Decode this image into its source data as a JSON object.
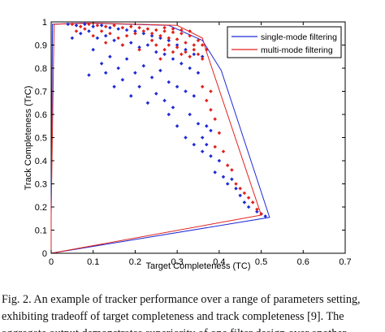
{
  "caption": {
    "lines": [
      "Fig. 2.   An example of tracker performance over a range of parameters setting,",
      "exhibiting tradeoff of target completeness and track completeness [9]. The",
      "aggregate output demonstrates superiority of one filter design over another."
    ]
  },
  "chart_data": {
    "type": "scatter",
    "xlabel": "Target Completeness (TC)",
    "ylabel": "Track Completeness (TrC)",
    "xlim": [
      0,
      0.7
    ],
    "ylim": [
      0,
      1
    ],
    "xticks": [
      "0",
      "0.1",
      "0.2",
      "0.3",
      "0.4",
      "0.5",
      "0.6",
      "0.7"
    ],
    "yticks": [
      "0",
      "0.1",
      "0.2",
      "0.3",
      "0.4",
      "0.5",
      "0.6",
      "0.7",
      "0.8",
      "0.9",
      "1"
    ],
    "grid": false,
    "legend_position": "top-right",
    "series": [
      {
        "name": "single-mode filtering",
        "color": "#1f2bd6",
        "hull": [
          [
            0,
            0
          ],
          [
            0.0,
            0.17
          ],
          [
            0.003,
            0.99
          ],
          [
            0.08,
            0.995
          ],
          [
            0.28,
            0.985
          ],
          [
            0.36,
            0.92
          ],
          [
            0.405,
            0.79
          ],
          [
            0.52,
            0.155
          ],
          [
            0,
            0
          ]
        ],
        "points": [
          [
            0.04,
            0.99
          ],
          [
            0.06,
            0.985
          ],
          [
            0.08,
            0.99
          ],
          [
            0.1,
            0.98
          ],
          [
            0.12,
            0.985
          ],
          [
            0.14,
            0.975
          ],
          [
            0.16,
            0.97
          ],
          [
            0.18,
            0.965
          ],
          [
            0.2,
            0.96
          ],
          [
            0.22,
            0.95
          ],
          [
            0.24,
            0.94
          ],
          [
            0.26,
            0.93
          ],
          [
            0.28,
            0.92
          ],
          [
            0.3,
            0.9
          ],
          [
            0.32,
            0.88
          ],
          [
            0.34,
            0.86
          ],
          [
            0.36,
            0.85
          ],
          [
            0.05,
            0.93
          ],
          [
            0.07,
            0.95
          ],
          [
            0.09,
            0.96
          ],
          [
            0.11,
            0.93
          ],
          [
            0.13,
            0.94
          ],
          [
            0.15,
            0.92
          ],
          [
            0.17,
            0.9
          ],
          [
            0.19,
            0.91
          ],
          [
            0.21,
            0.89
          ],
          [
            0.23,
            0.9
          ],
          [
            0.25,
            0.87
          ],
          [
            0.27,
            0.86
          ],
          [
            0.29,
            0.84
          ],
          [
            0.31,
            0.82
          ],
          [
            0.33,
            0.8
          ],
          [
            0.35,
            0.78
          ],
          [
            0.12,
            0.82
          ],
          [
            0.14,
            0.85
          ],
          [
            0.16,
            0.8
          ],
          [
            0.18,
            0.84
          ],
          [
            0.2,
            0.78
          ],
          [
            0.22,
            0.81
          ],
          [
            0.24,
            0.76
          ],
          [
            0.26,
            0.79
          ],
          [
            0.28,
            0.74
          ],
          [
            0.3,
            0.72
          ],
          [
            0.32,
            0.7
          ],
          [
            0.34,
            0.68
          ],
          [
            0.1,
            0.88
          ],
          [
            0.13,
            0.78
          ],
          [
            0.17,
            0.75
          ],
          [
            0.21,
            0.72
          ],
          [
            0.25,
            0.69
          ],
          [
            0.27,
            0.66
          ],
          [
            0.29,
            0.63
          ],
          [
            0.33,
            0.6
          ],
          [
            0.35,
            0.56
          ],
          [
            0.37,
            0.55
          ],
          [
            0.38,
            0.53
          ],
          [
            0.3,
            0.55
          ],
          [
            0.32,
            0.5
          ],
          [
            0.34,
            0.47
          ],
          [
            0.36,
            0.44
          ],
          [
            0.38,
            0.42
          ],
          [
            0.4,
            0.4
          ],
          [
            0.39,
            0.35
          ],
          [
            0.41,
            0.33
          ],
          [
            0.42,
            0.3
          ],
          [
            0.44,
            0.28
          ],
          [
            0.45,
            0.25
          ],
          [
            0.46,
            0.22
          ],
          [
            0.47,
            0.2
          ],
          [
            0.49,
            0.18
          ],
          [
            0.5,
            0.17
          ],
          [
            0.51,
            0.16
          ],
          [
            0.36,
            0.5
          ],
          [
            0.28,
            0.6
          ],
          [
            0.23,
            0.65
          ],
          [
            0.15,
            0.72
          ],
          [
            0.09,
            0.77
          ],
          [
            0.19,
            0.68
          ],
          [
            0.37,
            0.47
          ],
          [
            0.43,
            0.32
          ]
        ]
      },
      {
        "name": "multi-mode filtering",
        "color": "#e0221e",
        "hull": [
          [
            0,
            0
          ],
          [
            0.5,
            0.165
          ],
          [
            0.37,
            0.87
          ],
          [
            0.36,
            0.93
          ],
          [
            0.3,
            0.985
          ],
          [
            0.1,
            0.995
          ],
          [
            0.007,
            0.99
          ],
          [
            0.0,
            0.17
          ],
          [
            0,
            0
          ]
        ],
        "points": [
          [
            0.05,
            0.99
          ],
          [
            0.07,
            0.98
          ],
          [
            0.09,
            0.99
          ],
          [
            0.11,
            0.985
          ],
          [
            0.13,
            0.98
          ],
          [
            0.15,
            0.985
          ],
          [
            0.17,
            0.975
          ],
          [
            0.19,
            0.98
          ],
          [
            0.21,
            0.975
          ],
          [
            0.23,
            0.97
          ],
          [
            0.25,
            0.965
          ],
          [
            0.27,
            0.96
          ],
          [
            0.29,
            0.955
          ],
          [
            0.31,
            0.95
          ],
          [
            0.33,
            0.94
          ],
          [
            0.35,
            0.92
          ],
          [
            0.36,
            0.9
          ],
          [
            0.37,
            0.88
          ],
          [
            0.24,
            0.95
          ],
          [
            0.26,
            0.94
          ],
          [
            0.28,
            0.93
          ],
          [
            0.3,
            0.925
          ],
          [
            0.32,
            0.91
          ],
          [
            0.34,
            0.9
          ],
          [
            0.29,
            0.97
          ],
          [
            0.31,
            0.965
          ],
          [
            0.33,
            0.96
          ],
          [
            0.27,
            0.975
          ],
          [
            0.22,
            0.96
          ],
          [
            0.2,
            0.95
          ],
          [
            0.18,
            0.94
          ],
          [
            0.16,
            0.93
          ],
          [
            0.14,
            0.95
          ],
          [
            0.12,
            0.96
          ],
          [
            0.1,
            0.94
          ],
          [
            0.08,
            0.97
          ],
          [
            0.06,
            0.96
          ],
          [
            0.25,
            0.9
          ],
          [
            0.27,
            0.88
          ],
          [
            0.29,
            0.87
          ],
          [
            0.31,
            0.86
          ],
          [
            0.33,
            0.85
          ],
          [
            0.35,
            0.86
          ],
          [
            0.36,
            0.84
          ],
          [
            0.3,
            0.89
          ],
          [
            0.32,
            0.87
          ],
          [
            0.34,
            0.88
          ],
          [
            0.24,
            0.92
          ],
          [
            0.28,
            0.9
          ],
          [
            0.38,
            0.62
          ],
          [
            0.39,
            0.58
          ],
          [
            0.4,
            0.52
          ],
          [
            0.39,
            0.46
          ],
          [
            0.41,
            0.44
          ],
          [
            0.42,
            0.38
          ],
          [
            0.43,
            0.36
          ],
          [
            0.44,
            0.3
          ],
          [
            0.45,
            0.28
          ],
          [
            0.46,
            0.26
          ],
          [
            0.47,
            0.24
          ],
          [
            0.48,
            0.22
          ],
          [
            0.49,
            0.19
          ],
          [
            0.5,
            0.17
          ],
          [
            0.37,
            0.66
          ],
          [
            0.36,
            0.72
          ],
          [
            0.38,
            0.7
          ],
          [
            0.26,
            0.84
          ],
          [
            0.21,
            0.88
          ],
          [
            0.17,
            0.9
          ],
          [
            0.13,
            0.91
          ]
        ]
      }
    ]
  }
}
